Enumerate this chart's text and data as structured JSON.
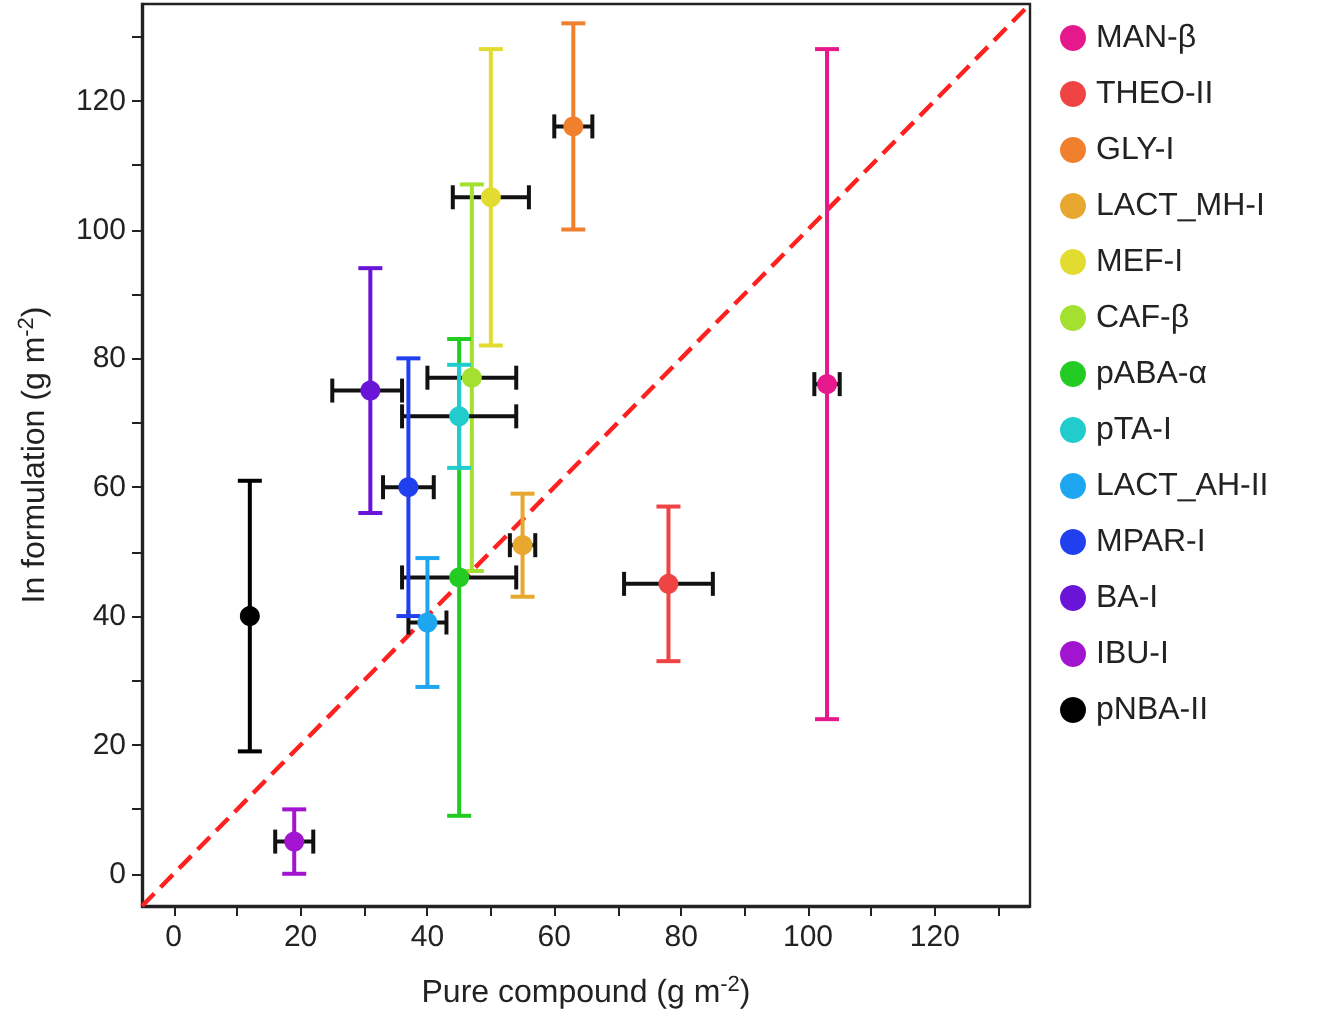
{
  "chart_data": {
    "type": "scatter",
    "xlabel": "Pure compound (g m$^{-2}$)",
    "ylabel": "In formulation (g m$^{-2}$)",
    "xlim": [
      -5,
      135
    ],
    "ylim": [
      -5,
      135
    ],
    "xticks": [
      0,
      {
        "value": 10,
        "label": null
      },
      20,
      {
        "value": 30,
        "label": null
      },
      40,
      {
        "value": 50,
        "label": null
      },
      60,
      {
        "value": 70,
        "label": null
      },
      80,
      {
        "value": 90,
        "label": null
      },
      100,
      {
        "value": 110,
        "label": null
      },
      120,
      {
        "value": 130,
        "label": null
      }
    ],
    "yticks": [
      0,
      {
        "value": 10,
        "label": null
      },
      20,
      {
        "value": 30,
        "label": null
      },
      40,
      {
        "value": 50,
        "label": null
      },
      60,
      {
        "value": 70,
        "label": null
      },
      80,
      {
        "value": 90,
        "label": null
      },
      100,
      {
        "value": 110,
        "label": null
      },
      120,
      {
        "value": 130,
        "label": null
      }
    ],
    "legend": "right",
    "marker": "circle",
    "grid": false,
    "series": [
      {
        "name": "MAN-β",
        "color": "#e6198c",
        "x": [
          103
        ],
        "values": [
          76
        ],
        "errors": [
          [
            24,
            128
          ]
        ],
        "xerrors": [
          [
            101,
            105
          ]
        ]
      },
      {
        "name": "THEO-II",
        "color": "#f04444",
        "x": [
          78
        ],
        "values": [
          45
        ],
        "errors": [
          [
            33,
            57
          ]
        ],
        "xerrors": [
          [
            71,
            85
          ]
        ]
      },
      {
        "name": "GLY-I",
        "color": "#f07f2e",
        "x": [
          63
        ],
        "values": [
          116
        ],
        "errors": [
          [
            100,
            132
          ]
        ],
        "xerrors": [
          [
            60,
            66
          ]
        ]
      },
      {
        "name": "LACT_MH-I",
        "color": "#e8a72e",
        "x": [
          55
        ],
        "values": [
          51
        ],
        "errors": [
          [
            43,
            59
          ]
        ],
        "xerrors": [
          [
            53,
            57
          ]
        ]
      },
      {
        "name": "MEF-I",
        "color": "#e3dc30",
        "x": [
          50
        ],
        "values": [
          105
        ],
        "errors": [
          [
            82,
            128
          ]
        ],
        "xerrors": [
          [
            44,
            56
          ]
        ]
      },
      {
        "name": "CAF-β",
        "color": "#a3e02f",
        "x": [
          47
        ],
        "values": [
          77
        ],
        "errors": [
          [
            47,
            107
          ]
        ],
        "xerrors": [
          [
            40,
            54
          ]
        ]
      },
      {
        "name": "pABA-α",
        "color": "#22cc22",
        "x": [
          45
        ],
        "values": [
          46
        ],
        "errors": [
          [
            9,
            83
          ]
        ],
        "xerrors": [
          [
            36,
            54
          ]
        ]
      },
      {
        "name": "pTA-I",
        "color": "#22cccc",
        "x": [
          45
        ],
        "values": [
          71
        ],
        "errors": [
          [
            63,
            79
          ]
        ],
        "xerrors": [
          [
            36,
            54
          ]
        ]
      },
      {
        "name": "LACT_AH-II",
        "color": "#1ea6f0",
        "x": [
          40
        ],
        "values": [
          39
        ],
        "errors": [
          [
            29,
            49
          ]
        ],
        "xerrors": [
          [
            37,
            43
          ]
        ]
      },
      {
        "name": "MPAR-I",
        "color": "#2040f0",
        "x": [
          37
        ],
        "values": [
          60
        ],
        "errors": [
          [
            40,
            80
          ]
        ],
        "xerrors": [
          [
            33,
            41
          ]
        ]
      },
      {
        "name": "BA-I",
        "color": "#6a14d8",
        "x": [
          31
        ],
        "values": [
          75
        ],
        "errors": [
          [
            56,
            94
          ]
        ],
        "xerrors": [
          [
            25,
            36
          ]
        ]
      },
      {
        "name": "IBU-I",
        "color": "#a214d0",
        "x": [
          19
        ],
        "values": [
          5
        ],
        "errors": [
          [
            0,
            10
          ]
        ],
        "xerrors": [
          [
            16,
            22
          ]
        ]
      },
      {
        "name": "pNBA-II",
        "color": "#000000",
        "x": [
          12
        ],
        "values": [
          40
        ],
        "errors": [
          [
            19,
            61
          ]
        ]
      },
      {
        "type": "line",
        "color": "#ff2020",
        "x": [
          -5,
          135
        ],
        "values": [
          -5,
          135
        ],
        "line_style": "dashed",
        "marker": "none"
      }
    ]
  }
}
